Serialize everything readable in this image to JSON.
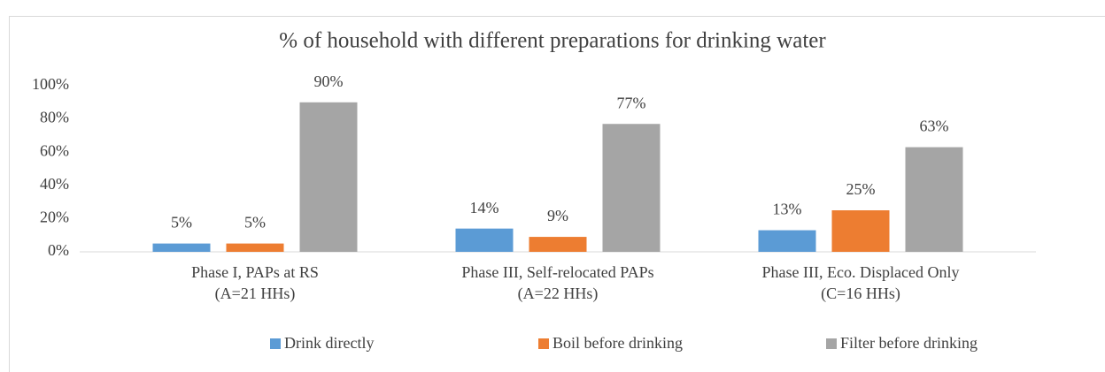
{
  "chart_data": {
    "type": "bar",
    "title": "% of household with different preparations for drinking water",
    "categories": [
      [
        "Phase I, PAPs at RS",
        "(A=21 HHs)"
      ],
      [
        "Phase III, Self-relocated PAPs",
        "(A=22 HHs)"
      ],
      [
        "Phase III, Eco. Displaced Only",
        "(C=16 HHs)"
      ]
    ],
    "series": [
      {
        "name": "Drink directly",
        "color": "#5b9bd5",
        "values": [
          5,
          14,
          13
        ],
        "value_labels": [
          "5%",
          "14%",
          "13%"
        ]
      },
      {
        "name": "Boil before drinking",
        "color": "#ed7d31",
        "values": [
          5,
          9,
          25
        ],
        "value_labels": [
          "5%",
          "9%",
          "25%"
        ]
      },
      {
        "name": "Filter before drinking",
        "color": "#a5a5a5",
        "values": [
          90,
          77,
          63
        ],
        "value_labels": [
          "90%",
          "77%",
          "63%"
        ]
      }
    ],
    "ylim": [
      0,
      100
    ],
    "yticks": [
      {
        "value": 0,
        "label": "0%"
      },
      {
        "value": 20,
        "label": "20%"
      },
      {
        "value": 40,
        "label": "40%"
      },
      {
        "value": 60,
        "label": "60%"
      },
      {
        "value": 80,
        "label": "80%"
      },
      {
        "value": 100,
        "label": "100%"
      }
    ],
    "grid": false,
    "legend": "bottom"
  }
}
